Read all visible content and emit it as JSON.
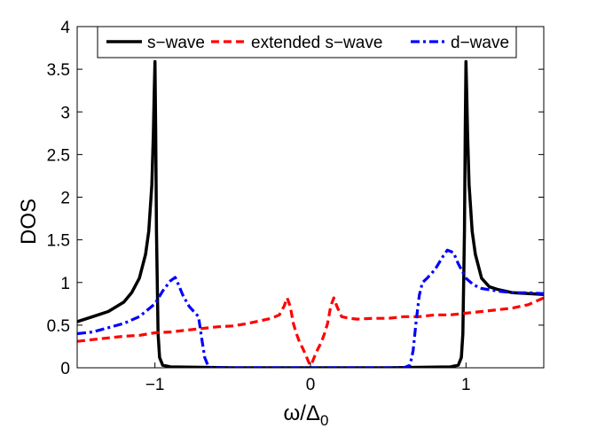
{
  "chart_data": {
    "type": "line",
    "title": "",
    "xlabel": "ω/Δ",
    "xlabel_subscript": "0",
    "ylabel": "DOS",
    "xlim": [
      -1.5,
      1.5
    ],
    "ylim": [
      0,
      4
    ],
    "xticks": [
      -1,
      0,
      1
    ],
    "xtick_labels": [
      "−1",
      "0",
      "1"
    ],
    "yticks": [
      0,
      0.5,
      1,
      1.5,
      2,
      2.5,
      3,
      3.5,
      4
    ],
    "ytick_labels": [
      "0",
      "0.5",
      "1",
      "1.5",
      "2",
      "2.5",
      "3",
      "3.5",
      "4"
    ],
    "grid": false,
    "legend_position": "top",
    "series": [
      {
        "name": "s−wave",
        "color": "#000000",
        "style": "solid",
        "x": [
          -1.5,
          -1.4,
          -1.3,
          -1.2,
          -1.15,
          -1.1,
          -1.06,
          -1.04,
          -1.02,
          -1.01,
          -1.005,
          -1.0,
          -0.995,
          -0.99,
          -0.98,
          -0.97,
          -0.95,
          -0.9,
          -0.5,
          0,
          0.5,
          0.9,
          0.95,
          0.97,
          0.98,
          0.99,
          0.995,
          1.0,
          1.005,
          1.01,
          1.02,
          1.04,
          1.06,
          1.1,
          1.15,
          1.2,
          1.3,
          1.4,
          1.5
        ],
        "y": [
          0.54,
          0.6,
          0.66,
          0.77,
          0.88,
          1.05,
          1.33,
          1.6,
          2.15,
          2.75,
          3.2,
          3.59,
          2.8,
          1.6,
          0.4,
          0.12,
          0.03,
          0.01,
          0,
          0,
          0,
          0.01,
          0.03,
          0.12,
          0.4,
          1.6,
          2.8,
          3.59,
          3.2,
          2.75,
          2.15,
          1.6,
          1.33,
          1.05,
          0.95,
          0.92,
          0.88,
          0.87,
          0.86
        ]
      },
      {
        "name": "extended s−wave",
        "color": "#ff0000",
        "style": "dashed",
        "x": [
          -1.5,
          -1.4,
          -1.3,
          -1.2,
          -1.1,
          -1.0,
          -0.9,
          -0.8,
          -0.7,
          -0.6,
          -0.5,
          -0.4,
          -0.3,
          -0.25,
          -0.2,
          -0.17,
          -0.15,
          -0.13,
          -0.11,
          -0.09,
          -0.07,
          -0.05,
          -0.03,
          -0.01,
          0,
          0.01,
          0.03,
          0.05,
          0.07,
          0.09,
          0.11,
          0.13,
          0.15,
          0.17,
          0.2,
          0.25,
          0.3,
          0.4,
          0.5,
          0.6,
          0.7,
          0.8,
          0.9,
          1.0,
          1.1,
          1.2,
          1.3,
          1.4,
          1.5
        ],
        "y": [
          0.31,
          0.33,
          0.35,
          0.37,
          0.38,
          0.41,
          0.42,
          0.44,
          0.46,
          0.48,
          0.49,
          0.52,
          0.56,
          0.58,
          0.62,
          0.72,
          0.82,
          0.72,
          0.52,
          0.4,
          0.3,
          0.23,
          0.15,
          0.06,
          0.03,
          0.06,
          0.15,
          0.23,
          0.3,
          0.4,
          0.52,
          0.72,
          0.82,
          0.72,
          0.6,
          0.58,
          0.57,
          0.58,
          0.58,
          0.6,
          0.6,
          0.62,
          0.62,
          0.64,
          0.66,
          0.68,
          0.7,
          0.74,
          0.82
        ]
      },
      {
        "name": "d−wave",
        "color": "#0000ff",
        "style": "dashdot",
        "x": [
          -1.5,
          -1.4,
          -1.3,
          -1.2,
          -1.1,
          -1.0,
          -0.95,
          -0.9,
          -0.87,
          -0.85,
          -0.82,
          -0.78,
          -0.72,
          -0.7,
          -0.68,
          -0.66,
          -0.64,
          -0.6,
          0,
          0.6,
          0.64,
          0.66,
          0.68,
          0.7,
          0.72,
          0.75,
          0.8,
          0.85,
          0.88,
          0.92,
          0.95,
          1.0,
          1.05,
          1.1,
          1.2,
          1.3,
          1.4,
          1.5
        ],
        "y": [
          0.4,
          0.42,
          0.47,
          0.52,
          0.6,
          0.75,
          0.9,
          1.02,
          1.06,
          0.98,
          0.85,
          0.72,
          0.6,
          0.35,
          0.12,
          0.03,
          0,
          0,
          0,
          0,
          0.03,
          0.2,
          0.55,
          0.85,
          1.0,
          1.05,
          1.15,
          1.3,
          1.38,
          1.35,
          1.22,
          1.05,
          0.97,
          0.93,
          0.9,
          0.88,
          0.88,
          0.87
        ]
      }
    ]
  }
}
